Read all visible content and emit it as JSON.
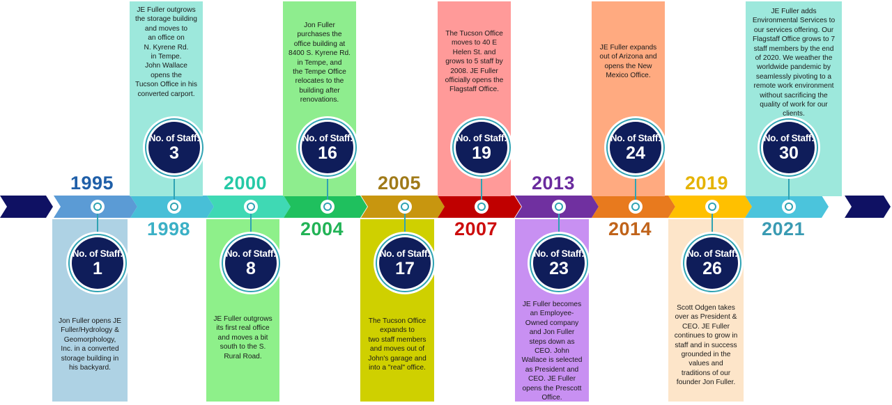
{
  "staff_label": "No. of Staff:",
  "milestones": [
    {
      "year": "1995",
      "staff": "1",
      "year_color": "#1f5fa8",
      "seg_color": "#5b9bd5",
      "panel_color": "#aed2e4",
      "pos": "below",
      "text": "Jon Fuller opens JE\nFuller/Hydrology &\nGeomorphology,\nInc. in a converted\nstorage building in\nhis backyard."
    },
    {
      "year": "1998",
      "staff": "3",
      "year_color": "#3bb0c6",
      "seg_color": "#48bfd7",
      "panel_color": "#9de8dc",
      "pos": "above",
      "text": "JE Fuller outgrows\nthe storage building\nand moves to\nan office on\nN. Kyrene Rd.\nin Tempe.\nJohn Wallace\nopens the\nTucson Office in his\nconverted carport."
    },
    {
      "year": "2000",
      "staff": "8",
      "year_color": "#25c9a6",
      "seg_color": "#3fd9b4",
      "panel_color": "#8ef08a",
      "pos": "below",
      "text": "JE Fuller outgrows\nits first real office\nand moves a bit\nsouth to the S.\nRural Road."
    },
    {
      "year": "2004",
      "staff": "16",
      "year_color": "#22b356",
      "seg_color": "#1fc05e",
      "panel_color": "#8eed8e",
      "pos": "above",
      "text": "Jon Fuller\npurchases the\noffice building at\n8400 S. Kyrene Rd.\nin Tempe, and\nthe Tempe Office\nrelocates to the\nbuilding after\nrenovations."
    },
    {
      "year": "2005",
      "staff": "17",
      "year_color": "#a07a18",
      "seg_color": "#c8960f",
      "panel_color": "#cfd000",
      "pos": "below",
      "text": "The Tucson Office\nexpands to\ntwo staff members\nand moves out of\nJohn's garage and\ninto a \"real\" office."
    },
    {
      "year": "2007",
      "staff": "19",
      "year_color": "#cc0d0d",
      "seg_color": "#c00000",
      "panel_color": "#ff9a99",
      "pos": "above",
      "text": "The Tucson Office\nmoves to 40 E\nHelen St. and\ngrows to 5 staff by\n2008.  JE Fuller\nofficially opens the\nFlagstaff Office."
    },
    {
      "year": "2013",
      "staff": "23",
      "year_color": "#6a2b9e",
      "seg_color": "#7030a0",
      "panel_color": "#c890f2",
      "pos": "below",
      "text": "JE Fuller becomes\nan Employee-\nOwned company\nand Jon Fuller\nsteps down as\nCEO.  John\nWallace is selected\nas President and\nCEO.  JE Fuller\nopens the Prescott\nOffice."
    },
    {
      "year": "2014",
      "staff": "24",
      "year_color": "#c0631a",
      "seg_color": "#e87a1e",
      "panel_color": "#ffaa80",
      "pos": "above",
      "text": "JE Fuller expands\nout of Arizona and\nopens the New\nMexico Office."
    },
    {
      "year": "2019",
      "staff": "26",
      "year_color": "#e5b300",
      "seg_color": "#ffc000",
      "panel_color": "#fde5c9",
      "pos": "below",
      "text": "Scott Odgen takes\nover as President &\nCEO. JE Fuller\ncontinues to grow in\nstaff and in success\ngrounded in the\nvalues and\ntraditions of our\nfounder Jon Fuller."
    },
    {
      "year": "2021",
      "staff": "30",
      "year_color": "#3a9bb3",
      "seg_color": "#4bc4dc",
      "panel_color": "#9de8dc",
      "pos": "above",
      "text": "JE Fuller adds\nEnvironmental Services to\nour services offering.  Our\nFlagstaff Office grows to 7\nstaff members by the end\nof 2020. We weather the\nworldwide pandemic by\nseamlessly pivoting to a\nremote work environment\nwithout sacrificing the\nquality of work for our\nclients."
    }
  ],
  "colors": {
    "arrow_navy": "#0f1163",
    "badge_navy": "#0f1d5a",
    "badge_ring": "#2fa3b3"
  }
}
